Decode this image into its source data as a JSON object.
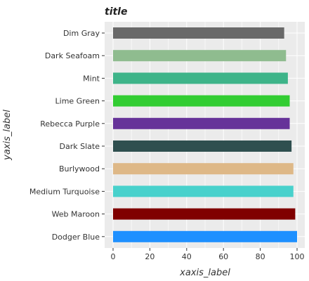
{
  "chart_data": {
    "type": "bar",
    "orientation": "horizontal",
    "title": "title",
    "xlabel": "xaxis_label",
    "ylabel": "yaxis_label",
    "xlim": [
      0,
      100
    ],
    "xticks": [
      0,
      20,
      40,
      60,
      80,
      100
    ],
    "grid": true,
    "legend": "none",
    "categories": [
      "Dim Gray",
      "Dark Seafoam",
      "Mint",
      "Lime Green",
      "Rebecca Purple",
      "Dark Slate",
      "Burlywood",
      "Medium Turquoise",
      "Web Maroon",
      "Dodger Blue"
    ],
    "values": [
      93,
      94,
      95,
      96,
      96,
      97,
      98,
      98,
      99,
      100
    ],
    "colors": [
      "#696969",
      "#8fbc8f",
      "#3eb489",
      "#32cd32",
      "#663399",
      "#2f4f4f",
      "#deb887",
      "#48d1cc",
      "#800000",
      "#1e90ff"
    ]
  }
}
